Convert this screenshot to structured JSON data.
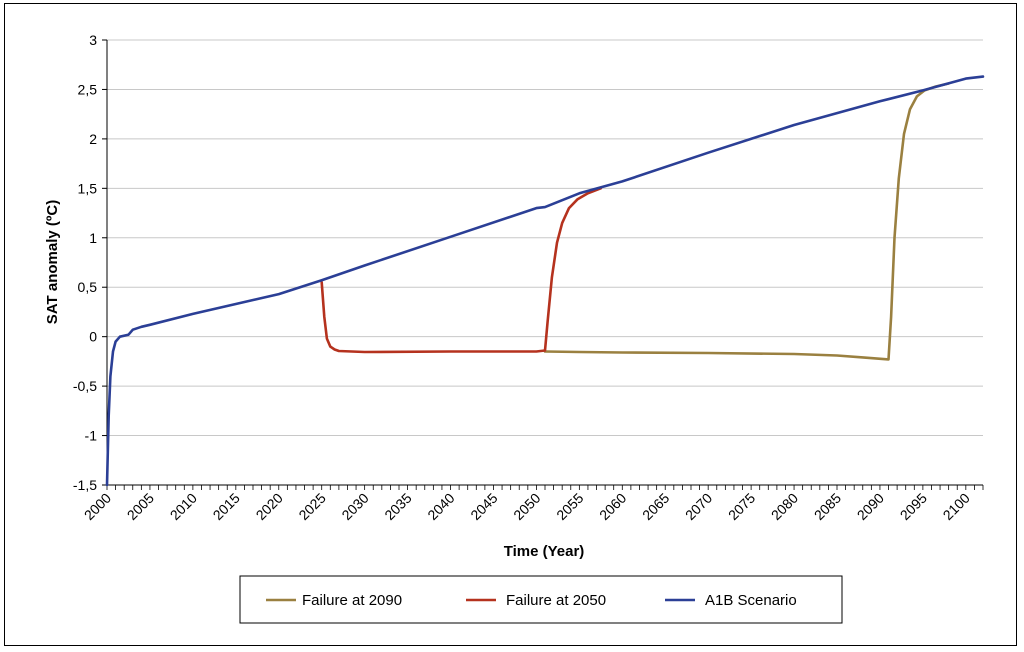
{
  "chart_data": {
    "type": "line",
    "title": "",
    "xlabel": "Time (Year)",
    "ylabel": "SAT anomaly (ºC)",
    "xlim": [
      2000,
      2102
    ],
    "ylim": [
      -1.5,
      3
    ],
    "x_ticks": [
      2000,
      2005,
      2010,
      2015,
      2020,
      2025,
      2030,
      2035,
      2040,
      2045,
      2050,
      2055,
      2060,
      2065,
      2070,
      2075,
      2080,
      2085,
      2090,
      2095,
      2100
    ],
    "x_tick_labels": [
      "2000",
      "2005",
      "2010",
      "2015",
      "2020",
      "2025",
      "2030",
      "2035",
      "2040",
      "2045",
      "2050",
      "2055",
      "2060",
      "2065",
      "2070",
      "2075",
      "2080",
      "2085",
      "2090",
      "2095",
      "2100"
    ],
    "y_ticks": [
      -1.5,
      -1,
      -0.5,
      0,
      0.5,
      1,
      1.5,
      2,
      2.5,
      3
    ],
    "y_tick_labels": [
      "-1,5",
      "-1",
      "-0,5",
      "0",
      "0,5",
      "1",
      "1,5",
      "2",
      "2,5",
      "3"
    ],
    "grid": "horizontal",
    "legend": "bottom",
    "series": [
      {
        "name": "Failure at 2090",
        "color": "#9a8040",
        "x": [
          2051,
          2055,
          2060,
          2070,
          2080,
          2085,
          2088,
          2091,
          2091.3,
          2091.7,
          2092.2,
          2092.8,
          2093.5,
          2094.3,
          2095.2,
          2096.5,
          2098
        ],
        "y": [
          -0.15,
          -0.155,
          -0.16,
          -0.165,
          -0.175,
          -0.19,
          -0.21,
          -0.23,
          0.2,
          1.0,
          1.6,
          2.05,
          2.3,
          2.43,
          2.49,
          2.53,
          2.56
        ]
      },
      {
        "name": "Failure at 2050",
        "color": "#b5321e",
        "x": [
          2025,
          2025.3,
          2025.6,
          2026,
          2026.5,
          2027,
          2030,
          2040,
          2050,
          2051,
          2051.3,
          2051.8,
          2052.4,
          2053,
          2053.8,
          2054.8,
          2056,
          2057.5
        ],
        "y": [
          0.55,
          0.2,
          -0.02,
          -0.1,
          -0.13,
          -0.145,
          -0.155,
          -0.15,
          -0.15,
          -0.14,
          0.15,
          0.6,
          0.95,
          1.15,
          1.3,
          1.39,
          1.45,
          1.5
        ]
      },
      {
        "name": "A1B Scenario",
        "color": "#2b3f96",
        "x": [
          2000,
          2000.2,
          2000.4,
          2000.7,
          2001,
          2001.5,
          2002.5,
          2003,
          2004,
          2005,
          2010,
          2015,
          2020,
          2025,
          2030,
          2040,
          2050,
          2051,
          2055,
          2060,
          2070,
          2080,
          2090,
          2095,
          2100,
          2102
        ],
        "y": [
          -1.5,
          -0.8,
          -0.4,
          -0.15,
          -0.05,
          0,
          0.02,
          0.07,
          0.1,
          0.12,
          0.23,
          0.33,
          0.43,
          0.57,
          0.72,
          1.01,
          1.3,
          1.31,
          1.45,
          1.57,
          1.86,
          2.14,
          2.38,
          2.49,
          2.61,
          2.63
        ]
      }
    ]
  }
}
